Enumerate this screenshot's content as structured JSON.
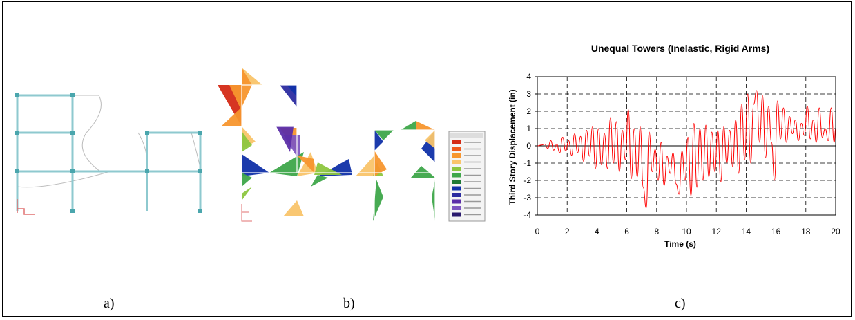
{
  "captions": {
    "a": "a)",
    "b": "b)",
    "c": "c)"
  },
  "colors": {
    "frame_member": "#8ec9cf",
    "frame_node": "#4aa6ad",
    "deformed_line": "#bcbcbc",
    "axis_marker": "#e07070",
    "series_line": "#ff0000",
    "legend_scale": [
      "#d42a16",
      "#ee5a1e",
      "#f7962e",
      "#f9c46a",
      "#8dc63f",
      "#3ea64a",
      "#1e7a35",
      "#1030a8",
      "#2c2ca0",
      "#5c2ea8",
      "#7e56c0",
      "#2b1b6e"
    ]
  },
  "chart_data": {
    "type": "line",
    "title": "Unequal Towers (Inelastic, Rigid Arms)",
    "xlabel": "Time (s)",
    "ylabel": "Third Story Displacement (in)",
    "xlim": [
      0,
      20
    ],
    "ylim": [
      -4,
      4
    ],
    "xticks": [
      0,
      2,
      4,
      6,
      8,
      10,
      12,
      14,
      16,
      18,
      20
    ],
    "yticks": [
      4,
      3,
      2,
      1,
      0,
      -1,
      -2,
      -3,
      -4
    ],
    "grid": "dashed",
    "series": [
      {
        "values": [
          [
            0,
            0
          ],
          [
            0.3,
            0.05
          ],
          [
            0.5,
            0.1
          ],
          [
            0.7,
            -0.15
          ],
          [
            0.9,
            0.3
          ],
          [
            1.1,
            -0.25
          ],
          [
            1.3,
            0.1
          ],
          [
            1.5,
            -0.4
          ],
          [
            1.7,
            0.5
          ],
          [
            1.9,
            -0.3
          ],
          [
            2.1,
            0.3
          ],
          [
            2.3,
            -0.55
          ],
          [
            2.5,
            0.7
          ],
          [
            2.7,
            -0.4
          ],
          [
            2.9,
            0.55
          ],
          [
            3.1,
            -0.9
          ],
          [
            3.3,
            0.9
          ],
          [
            3.5,
            -0.6
          ],
          [
            3.7,
            1.1
          ],
          [
            3.9,
            -1.3
          ],
          [
            4.1,
            1.0
          ],
          [
            4.3,
            -1.1
          ],
          [
            4.5,
            0.7
          ],
          [
            4.7,
            -1.3
          ],
          [
            4.9,
            1.6
          ],
          [
            5.1,
            -1.0
          ],
          [
            5.3,
            1.4
          ],
          [
            5.5,
            -1.5
          ],
          [
            5.7,
            0.9
          ],
          [
            5.9,
            -0.8
          ],
          [
            6.1,
            2.1
          ],
          [
            6.3,
            -1.9
          ],
          [
            6.5,
            1.0
          ],
          [
            6.7,
            -1.8
          ],
          [
            6.9,
            1.1
          ],
          [
            7.1,
            -2.4
          ],
          [
            7.3,
            -3.6
          ],
          [
            7.5,
            0.8
          ],
          [
            7.7,
            -1.5
          ],
          [
            7.9,
            -0.2
          ],
          [
            8.1,
            -2.0
          ],
          [
            8.3,
            0.2
          ],
          [
            8.5,
            -2.3
          ],
          [
            8.7,
            -0.6
          ],
          [
            8.9,
            -1.6
          ],
          [
            9.1,
            -0.4
          ],
          [
            9.3,
            -2.2
          ],
          [
            9.5,
            -2.8
          ],
          [
            9.7,
            -0.3
          ],
          [
            9.9,
            -2.0
          ],
          [
            10.1,
            0.5
          ],
          [
            10.3,
            -2.9
          ],
          [
            10.5,
            1.3
          ],
          [
            10.7,
            -2.4
          ],
          [
            10.9,
            1.0
          ],
          [
            11.1,
            -2.0
          ],
          [
            11.3,
            1.2
          ],
          [
            11.5,
            -1.8
          ],
          [
            11.7,
            0.8
          ],
          [
            11.9,
            -1.5
          ],
          [
            12.1,
            0.9
          ],
          [
            12.3,
            -2.1
          ],
          [
            12.5,
            1.1
          ],
          [
            12.7,
            -1.0
          ],
          [
            12.9,
            0.9
          ],
          [
            13.1,
            -1.2
          ],
          [
            13.3,
            1.5
          ],
          [
            13.5,
            -1.6
          ],
          [
            13.7,
            2.4
          ],
          [
            13.9,
            -0.8
          ],
          [
            14.1,
            3.0
          ],
          [
            14.3,
            -1.0
          ],
          [
            14.5,
            2.4
          ],
          [
            14.7,
            3.2
          ],
          [
            14.9,
            0.2
          ],
          [
            15.1,
            2.9
          ],
          [
            15.3,
            -0.7
          ],
          [
            15.5,
            2.3
          ],
          [
            15.7,
            0.2
          ],
          [
            15.9,
            -2.0
          ],
          [
            16.1,
            2.6
          ],
          [
            16.3,
            0.4
          ],
          [
            16.5,
            2.2
          ],
          [
            16.7,
            0.2
          ],
          [
            16.9,
            1.7
          ],
          [
            17.1,
            0.7
          ],
          [
            17.3,
            1.5
          ],
          [
            17.5,
            0.3
          ],
          [
            17.7,
            1.3
          ],
          [
            17.9,
            0.6
          ],
          [
            18.1,
            2.3
          ],
          [
            18.3,
            0.4
          ],
          [
            18.5,
            1.5
          ],
          [
            18.7,
            0.2
          ],
          [
            18.9,
            2.2
          ],
          [
            19.1,
            0.5
          ],
          [
            19.3,
            1.0
          ],
          [
            19.5,
            0.3
          ],
          [
            19.7,
            2.2
          ],
          [
            19.9,
            0.2
          ],
          [
            20,
            1.0
          ]
        ]
      }
    ]
  }
}
